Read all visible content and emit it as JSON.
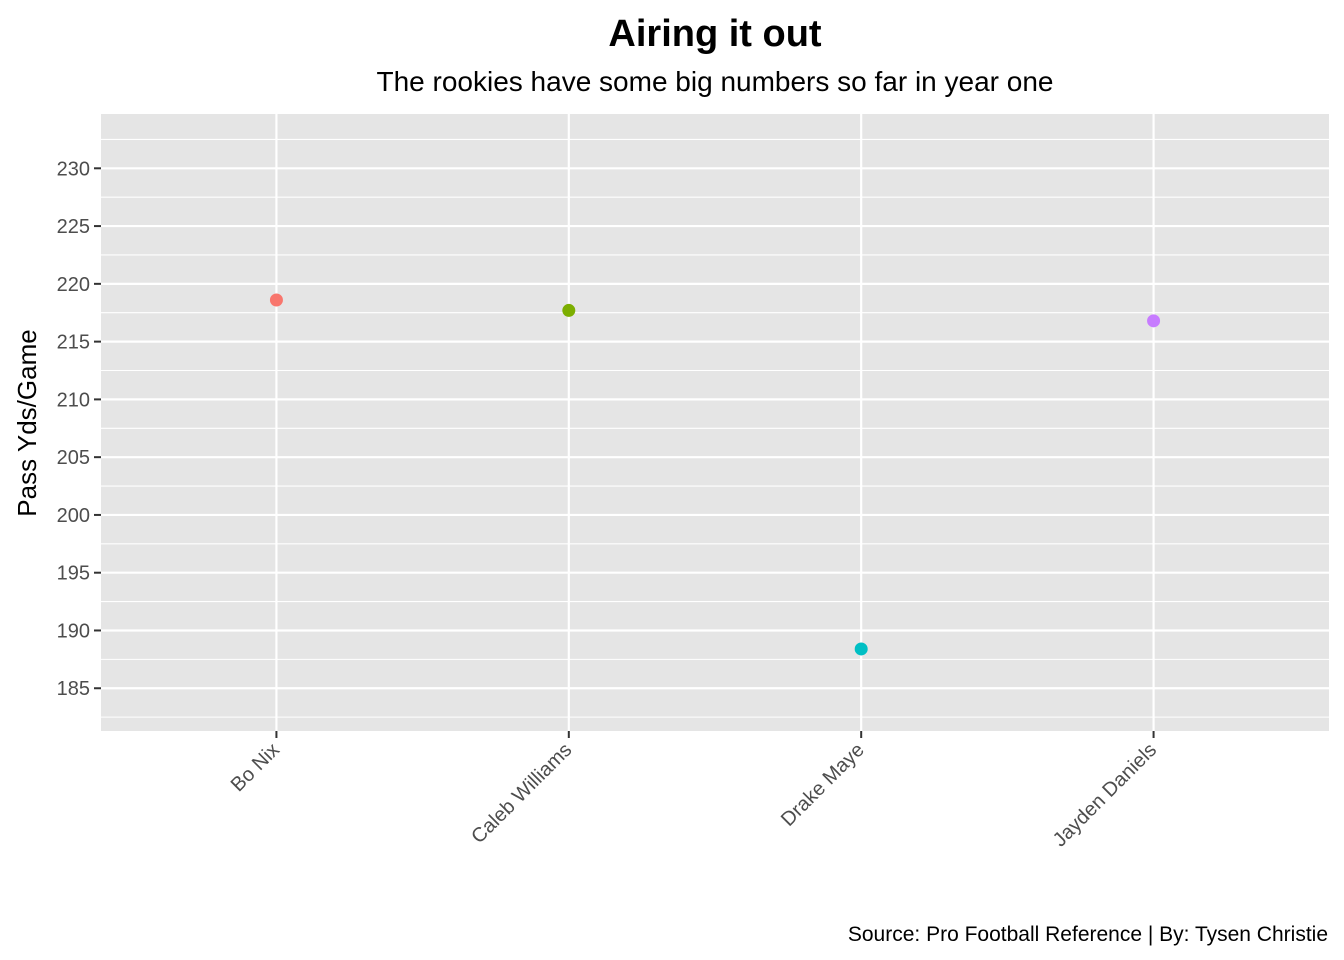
{
  "chart_data": {
    "type": "scatter",
    "title": "Airing it out",
    "subtitle": "The rookies have some big numbers so far in year one",
    "xlabel": "",
    "ylabel": "Pass Yds/Game",
    "caption": "Source: Pro Football Reference | By: Tysen Christie",
    "categories": [
      "Bo Nix",
      "Caleb Williams",
      "Drake Maye",
      "Jayden Daniels"
    ],
    "values": [
      218.6,
      217.7,
      188.4,
      216.8
    ],
    "colors": [
      "#F8766D",
      "#7CAE00",
      "#00BFC4",
      "#C77CFF"
    ],
    "ylim": [
      181.3,
      234.7
    ],
    "yticks": [
      185,
      190,
      195,
      200,
      205,
      210,
      215,
      220,
      225,
      230
    ],
    "grid": true,
    "panel_background": "#E5E5E5",
    "legend": "none"
  }
}
